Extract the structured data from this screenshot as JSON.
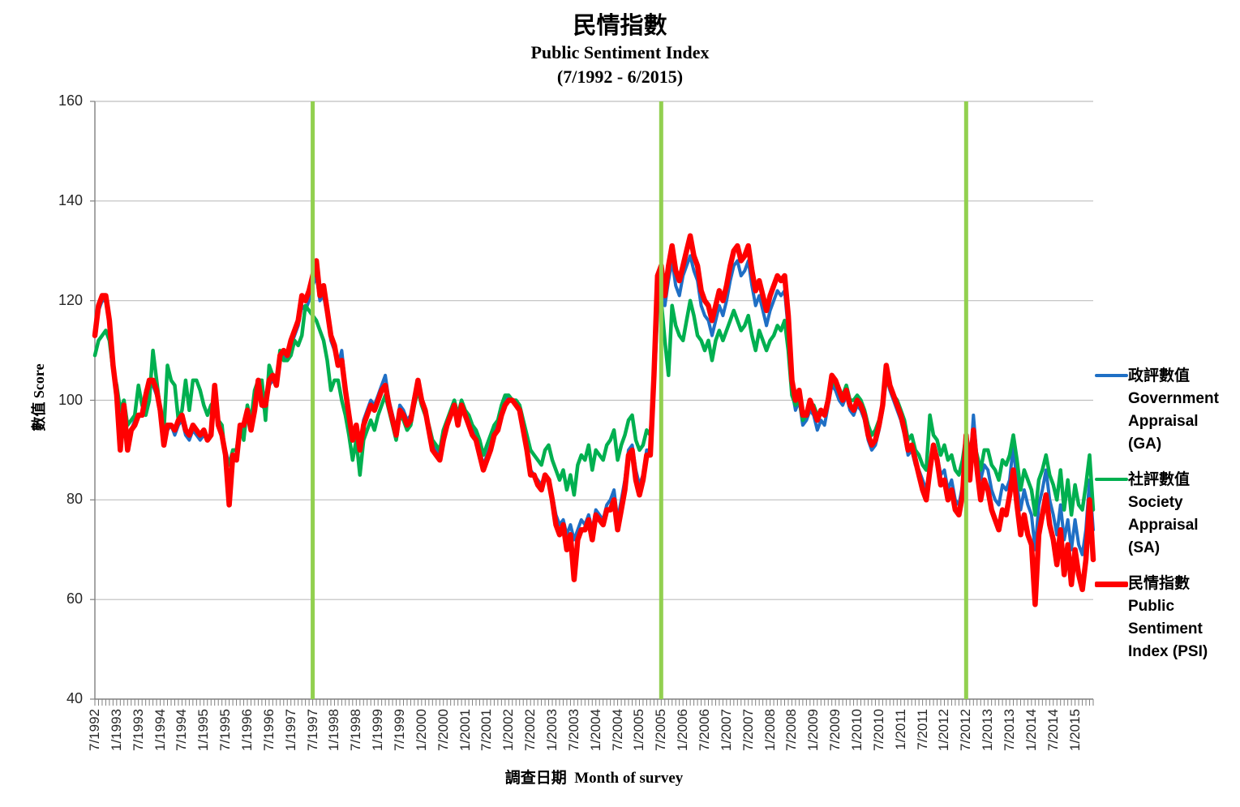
{
  "title": {
    "line1": "民情指數",
    "line2": "Public Sentiment Index",
    "line3": "(7/1992 - 6/2015)"
  },
  "axes": {
    "y_label": "數值 Score",
    "x_label": "調查日期  Month of survey",
    "y_ticks": [
      160,
      140,
      120,
      100,
      80,
      60,
      40
    ],
    "x_tick_labels": [
      "7/1992",
      "1/1993",
      "7/1993",
      "1/1994",
      "7/1994",
      "1/1995",
      "7/1995",
      "1/1996",
      "7/1996",
      "1/1997",
      "7/1997",
      "1/1998",
      "7/1998",
      "1/1999",
      "7/1999",
      "1/2000",
      "7/2000",
      "1/2001",
      "7/2001",
      "1/2002",
      "7/2002",
      "1/2003",
      "7/2003",
      "1/2004",
      "7/2004",
      "1/2005",
      "7/2005",
      "1/2006",
      "7/2006",
      "1/2007",
      "7/2007",
      "1/2008",
      "7/2008",
      "1/2009",
      "7/2009",
      "1/2010",
      "7/2010",
      "1/2011",
      "7/2011",
      "1/2012",
      "7/2012",
      "1/2013",
      "7/2013",
      "1/2014",
      "7/2014",
      "1/2015"
    ]
  },
  "legend": {
    "items": [
      {
        "lines": [
          "政評數值",
          "Government",
          "Appraisal",
          "(GA)"
        ],
        "color": "#1F6FC5",
        "thickness": 4
      },
      {
        "lines": [
          "社評數值",
          "Society",
          "Appraisal",
          "(SA)"
        ],
        "color": "#00B050",
        "thickness": 4
      },
      {
        "lines": [
          "民情指數",
          "Public",
          "Sentiment",
          "Index (PSI)"
        ],
        "color": "#FF0000",
        "thickness": 7
      }
    ]
  },
  "chart_data": {
    "type": "line",
    "title": "民情指數 Public Sentiment Index (7/1992 - 6/2015)",
    "xlabel": "調查日期 Month of survey",
    "ylabel": "數值 Score",
    "ylim": [
      40,
      160
    ],
    "y_ticks": [
      40,
      60,
      80,
      100,
      120,
      140,
      160
    ],
    "x_start": "7/1992",
    "x_end": "6/2015",
    "x_interval": "monthly",
    "n_points": 276,
    "grid": "horizontal",
    "legend_position": "right",
    "event_lines": {
      "color": "#92D050",
      "labels": [
        "7/1997",
        "7/2005",
        "7/2012"
      ],
      "month_indices": [
        60,
        156,
        240
      ]
    },
    "series": [
      {
        "name": "政評數值 Government Appraisal (GA)",
        "color": "#1F6FC5",
        "width": 4,
        "values": [
          113,
          118,
          120,
          120,
          115,
          107,
          103,
          95,
          99,
          92,
          94,
          96,
          97,
          97,
          102,
          103,
          103,
          101,
          97,
          91,
          94,
          95,
          93,
          95,
          96,
          93,
          92,
          94,
          93,
          92,
          93,
          92,
          93,
          103,
          95,
          93,
          90,
          87,
          89,
          88,
          94,
          95,
          97,
          94,
          98,
          103,
          99,
          98,
          103,
          104,
          103,
          108,
          109,
          108,
          111,
          113,
          115,
          119,
          118,
          120,
          123,
          125,
          120,
          121,
          117,
          112,
          110,
          107,
          110,
          103,
          98,
          93,
          95,
          91,
          96,
          98,
          100,
          99,
          101,
          103,
          105,
          100,
          97,
          94,
          99,
          98,
          96,
          97,
          101,
          103,
          100,
          98,
          95,
          91,
          90,
          89,
          93,
          96,
          97,
          99,
          96,
          99,
          98,
          96,
          94,
          93,
          90,
          87,
          89,
          91,
          94,
          95,
          98,
          100,
          101,
          100,
          99,
          98,
          95,
          91,
          86,
          85,
          84,
          83,
          85,
          84,
          81,
          77,
          75,
          76,
          73,
          75,
          72,
          74,
          76,
          75,
          77,
          74,
          78,
          77,
          76,
          79,
          80,
          82,
          76,
          80,
          84,
          90,
          91,
          86,
          83,
          85,
          90,
          90,
          103,
          122,
          125,
          119,
          124,
          128,
          123,
          121,
          125,
          127,
          129,
          126,
          124,
          119,
          117,
          116,
          113,
          116,
          119,
          117,
          120,
          124,
          127,
          128,
          125,
          126,
          128,
          123,
          119,
          121,
          118,
          115,
          118,
          120,
          122,
          121,
          122,
          114,
          102,
          98,
          100,
          95,
          96,
          98,
          97,
          94,
          96,
          95,
          99,
          103,
          102,
          100,
          99,
          101,
          98,
          97,
          99,
          98,
          96,
          92,
          90,
          91,
          94,
          98,
          105,
          102,
          100,
          98,
          96,
          93,
          89,
          90,
          87,
          86,
          84,
          82,
          87,
          90,
          89,
          85,
          86,
          82,
          84,
          80,
          79,
          83,
          92,
          86,
          97,
          88,
          84,
          87,
          86,
          82,
          80,
          79,
          83,
          82,
          84,
          91,
          83,
          78,
          82,
          79,
          77,
          70,
          79,
          82,
          86,
          80,
          77,
          73,
          79,
          72,
          76,
          70,
          76,
          71,
          69,
          74,
          84,
          74
        ]
      },
      {
        "name": "社評數值 Society Appraisal (SA)",
        "color": "#00B050",
        "width": 4.5,
        "values": [
          109,
          112,
          113,
          114,
          112,
          106,
          103,
          98,
          100,
          95,
          96,
          97,
          103,
          99,
          97,
          100,
          110,
          104,
          98,
          94,
          107,
          104,
          103,
          96,
          98,
          104,
          98,
          104,
          104,
          102,
          99,
          97,
          99,
          100,
          96,
          95,
          88,
          87,
          90,
          90,
          95,
          92,
          99,
          96,
          102,
          104,
          104,
          96,
          107,
          105,
          103,
          110,
          108,
          108,
          109,
          112,
          111,
          113,
          119,
          118,
          117,
          116,
          114,
          112,
          108,
          102,
          104,
          104,
          100,
          97,
          93,
          88,
          92,
          85,
          92,
          94,
          96,
          94,
          97,
          99,
          101,
          98,
          95,
          92,
          97,
          96,
          94,
          95,
          99,
          102,
          99,
          97,
          95,
          92,
          91,
          90,
          94,
          96,
          98,
          100,
          97,
          100,
          98,
          97,
          95,
          94,
          92,
          89,
          91,
          93,
          95,
          96,
          99,
          101,
          101,
          100,
          100,
          99,
          96,
          93,
          90,
          89,
          88,
          87,
          90,
          91,
          88,
          86,
          84,
          86,
          82,
          85,
          81,
          87,
          89,
          88,
          91,
          86,
          90,
          89,
          88,
          91,
          92,
          94,
          88,
          91,
          93,
          96,
          97,
          92,
          90,
          91,
          94,
          93,
          103,
          118,
          120,
          112,
          105,
          119,
          115,
          113,
          112,
          116,
          120,
          117,
          113,
          112,
          110,
          112,
          108,
          112,
          114,
          112,
          114,
          116,
          118,
          116,
          114,
          115,
          117,
          113,
          110,
          114,
          112,
          110,
          112,
          113,
          115,
          114,
          116,
          110,
          101,
          99,
          100,
          96,
          97,
          99,
          99,
          97,
          98,
          97,
          101,
          104,
          103,
          102,
          101,
          103,
          100,
          100,
          101,
          100,
          98,
          95,
          93,
          94,
          96,
          99,
          104,
          103,
          101,
          100,
          98,
          96,
          92,
          93,
          90,
          89,
          87,
          86,
          97,
          93,
          92,
          89,
          91,
          88,
          89,
          86,
          85,
          88,
          93,
          90,
          92,
          89,
          86,
          90,
          90,
          87,
          86,
          84,
          88,
          87,
          89,
          93,
          88,
          82,
          86,
          84,
          82,
          77,
          84,
          86,
          89,
          85,
          83,
          80,
          86,
          78,
          84,
          77,
          83,
          79,
          78,
          83,
          89,
          78
        ]
      },
      {
        "name": "民情指數 Public Sentiment Index (PSI)",
        "color": "#FF0000",
        "width": 6.5,
        "values": [
          113,
          119,
          121,
          121,
          116,
          107,
          101,
          90,
          99,
          90,
          94,
          95,
          97,
          97,
          101,
          104,
          104,
          102,
          98,
          91,
          95,
          95,
          94,
          96,
          97,
          94,
          93,
          95,
          94,
          93,
          94,
          92,
          93,
          103,
          95,
          93,
          89,
          79,
          89,
          88,
          95,
          95,
          98,
          94,
          98,
          104,
          99,
          99,
          104,
          105,
          103,
          109,
          110,
          109,
          112,
          114,
          116,
          121,
          120,
          122,
          125,
          128,
          121,
          123,
          118,
          113,
          111,
          107,
          108,
          102,
          97,
          92,
          95,
          90,
          95,
          97,
          99,
          98,
          100,
          102,
          103,
          99,
          96,
          93,
          98,
          97,
          95,
          96,
          100,
          104,
          100,
          98,
          94,
          90,
          89,
          88,
          92,
          95,
          97,
          99,
          95,
          99,
          97,
          95,
          93,
          92,
          89,
          86,
          88,
          90,
          93,
          94,
          97,
          99,
          100,
          100,
          99,
          98,
          94,
          90,
          85,
          85,
          83,
          82,
          85,
          84,
          80,
          75,
          73,
          75,
          70,
          73,
          64,
          72,
          74,
          74,
          76,
          72,
          77,
          76,
          75,
          78,
          78,
          80,
          74,
          78,
          82,
          89,
          90,
          84,
          81,
          84,
          89,
          89,
          105,
          125,
          127,
          121,
          127,
          131,
          126,
          124,
          127,
          130,
          133,
          129,
          127,
          122,
          120,
          119,
          116,
          119,
          122,
          120,
          123,
          127,
          130,
          131,
          128,
          129,
          131,
          126,
          122,
          124,
          121,
          118,
          121,
          123,
          125,
          124,
          125,
          117,
          104,
          100,
          102,
          97,
          97,
          100,
          98,
          96,
          98,
          97,
          100,
          105,
          104,
          102,
          100,
          102,
          99,
          98,
          100,
          99,
          97,
          93,
          91,
          92,
          95,
          99,
          107,
          103,
          101,
          99,
          97,
          94,
          90,
          91,
          88,
          85,
          82,
          80,
          86,
          91,
          88,
          83,
          84,
          80,
          82,
          78,
          77,
          81,
          93,
          84,
          94,
          86,
          80,
          84,
          82,
          78,
          76,
          74,
          78,
          77,
          81,
          86,
          79,
          73,
          77,
          73,
          71,
          59,
          73,
          77,
          81,
          75,
          72,
          67,
          74,
          65,
          71,
          63,
          70,
          65,
          62,
          68,
          80,
          68
        ]
      }
    ]
  }
}
